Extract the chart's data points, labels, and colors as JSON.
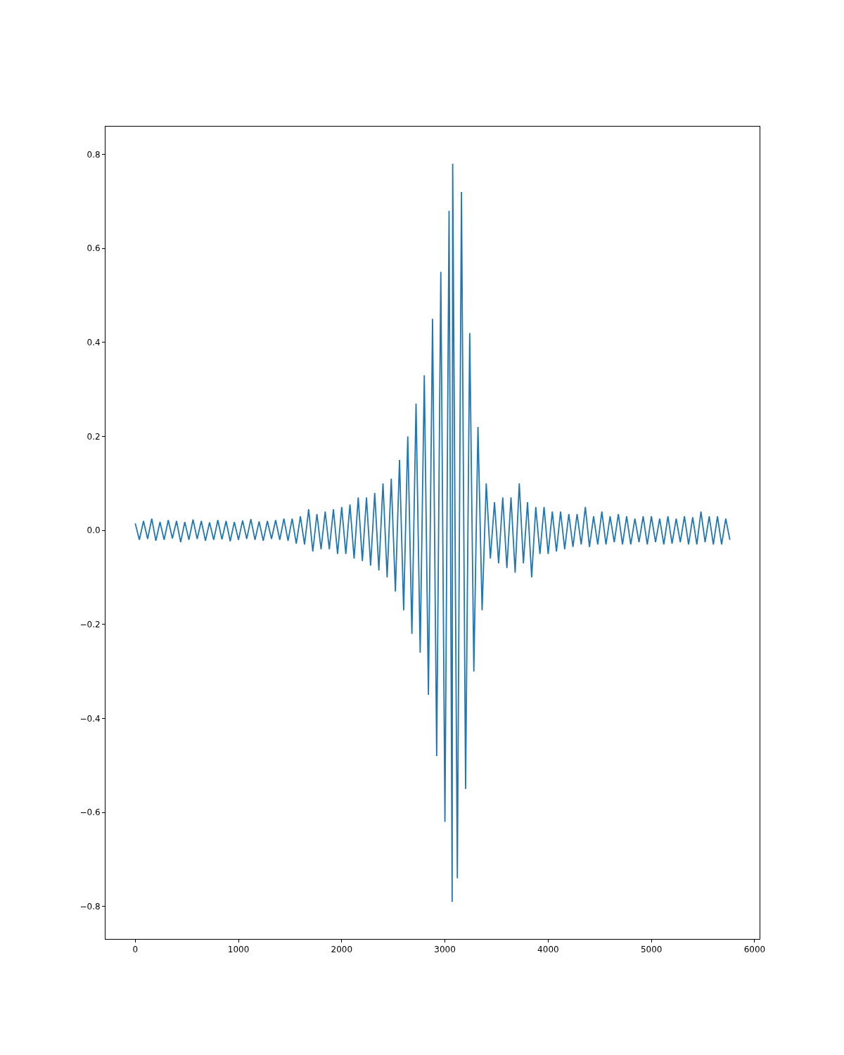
{
  "chart_data": {
    "type": "line",
    "marker": "none",
    "line_style": "solid",
    "xlim": [
      -288,
      6048
    ],
    "xticks": [
      0,
      1000,
      2000,
      3000,
      4000,
      5000,
      6000
    ],
    "ylim": [
      -0.869,
      0.859
    ],
    "yticks": [
      {
        "value": -0.8,
        "label": "−0.8"
      },
      {
        "value": -0.6,
        "label": "−0.6"
      },
      {
        "value": -0.4,
        "label": "−0.4"
      },
      {
        "value": -0.2,
        "label": "−0.2"
      },
      {
        "value": 0,
        "label": "0.0"
      },
      {
        "value": 0.2,
        "label": "0.2"
      },
      {
        "value": 0.4,
        "label": "0.4"
      },
      {
        "value": 0.6,
        "label": "0.6"
      },
      {
        "value": 0.8,
        "label": "0.8"
      }
    ],
    "x": [
      0,
      40,
      80,
      120,
      160,
      200,
      240,
      280,
      320,
      360,
      400,
      440,
      480,
      520,
      560,
      600,
      640,
      680,
      720,
      760,
      800,
      840,
      880,
      920,
      960,
      1000,
      1040,
      1080,
      1120,
      1160,
      1200,
      1240,
      1280,
      1320,
      1360,
      1400,
      1440,
      1480,
      1520,
      1560,
      1600,
      1640,
      1680,
      1720,
      1760,
      1800,
      1840,
      1880,
      1920,
      1960,
      2000,
      2040,
      2080,
      2120,
      2160,
      2200,
      2240,
      2280,
      2320,
      2360,
      2400,
      2440,
      2480,
      2520,
      2560,
      2600,
      2640,
      2680,
      2720,
      2760,
      2800,
      2840,
      2880,
      2920,
      2960,
      3000,
      3040,
      3070,
      3075,
      3120,
      3160,
      3200,
      3240,
      3280,
      3320,
      3360,
      3400,
      3440,
      3480,
      3520,
      3560,
      3600,
      3640,
      3680,
      3720,
      3760,
      3800,
      3840,
      3880,
      3920,
      3960,
      4000,
      4040,
      4080,
      4120,
      4160,
      4200,
      4240,
      4280,
      4320,
      4360,
      4400,
      4440,
      4480,
      4520,
      4560,
      4600,
      4640,
      4680,
      4720,
      4760,
      4800,
      4840,
      4880,
      4920,
      4960,
      5000,
      5040,
      5080,
      5120,
      5160,
      5200,
      5240,
      5280,
      5320,
      5360,
      5400,
      5440,
      5480,
      5520,
      5560,
      5600,
      5640,
      5680,
      5720,
      5760
    ],
    "series": [
      {
        "color": "#1f77b4",
        "values": [
          0.015,
          -0.02,
          0.02,
          -0.018,
          0.025,
          -0.022,
          0.018,
          -0.02,
          0.022,
          -0.017,
          0.02,
          -0.025,
          0.018,
          -0.02,
          0.023,
          -0.018,
          0.02,
          -0.022,
          0.017,
          -0.02,
          0.022,
          -0.019,
          0.02,
          -0.023,
          0.018,
          -0.02,
          0.021,
          -0.018,
          0.024,
          -0.02,
          0.019,
          -0.022,
          0.02,
          -0.018,
          0.022,
          -0.02,
          0.025,
          -0.022,
          0.025,
          -0.028,
          0.03,
          -0.03,
          0.045,
          -0.045,
          0.035,
          -0.04,
          0.04,
          -0.04,
          0.045,
          -0.05,
          0.05,
          -0.05,
          0.055,
          -0.06,
          0.07,
          -0.065,
          0.07,
          -0.075,
          0.08,
          -0.085,
          0.1,
          -0.1,
          0.11,
          -0.13,
          0.15,
          -0.17,
          0.2,
          -0.22,
          0.27,
          -0.26,
          0.33,
          -0.35,
          0.45,
          -0.48,
          0.55,
          -0.62,
          0.68,
          -0.79,
          0.78,
          -0.74,
          0.72,
          -0.55,
          0.42,
          -0.3,
          0.22,
          -0.17,
          0.1,
          -0.06,
          0.06,
          -0.07,
          0.07,
          -0.08,
          0.07,
          -0.09,
          0.1,
          -0.07,
          0.06,
          -0.1,
          0.05,
          -0.05,
          0.05,
          -0.05,
          0.04,
          -0.045,
          0.04,
          -0.04,
          0.035,
          -0.035,
          0.035,
          -0.03,
          0.05,
          -0.035,
          0.03,
          -0.03,
          0.04,
          -0.03,
          0.03,
          -0.025,
          0.035,
          -0.03,
          0.03,
          -0.03,
          0.025,
          -0.025,
          0.03,
          -0.03,
          0.03,
          -0.025,
          0.025,
          -0.03,
          0.03,
          -0.028,
          0.025,
          -0.025,
          0.03,
          -0.03,
          0.028,
          -0.03,
          0.04,
          -0.025,
          0.03,
          -0.03,
          0.03,
          -0.03,
          0.025,
          -0.02
        ]
      }
    ]
  }
}
